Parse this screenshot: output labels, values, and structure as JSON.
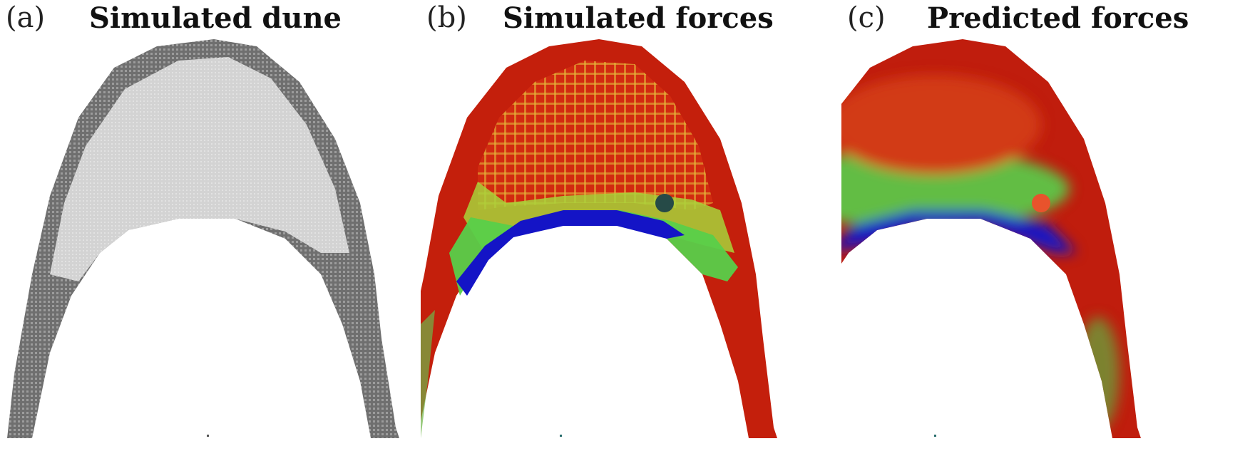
{
  "panels": [
    {
      "tag": "(a)",
      "title": "Simulated dune"
    },
    {
      "tag": "(b)",
      "title": "Simulated forces"
    },
    {
      "tag": "(c)",
      "title": "Predicted forces"
    }
  ],
  "colors": {
    "dune_outer": "#7a7a7a",
    "dune_inner": "#d6d6d6",
    "force_high": "#c8200f",
    "force_mid": "#e9c321",
    "force_green": "#5fd14a",
    "force_low": "#1010c8",
    "marker_b": "#264a47",
    "marker_c": "#e8532c"
  }
}
